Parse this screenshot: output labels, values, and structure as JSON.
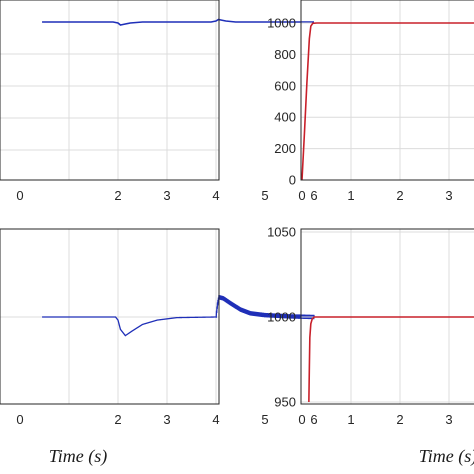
{
  "chart_data": [
    {
      "type": "line",
      "xlim": [
        0,
        6
      ],
      "x_ticks": [
        "2",
        "3",
        "4",
        "5",
        "6"
      ],
      "x_ticks_partial": [
        "0"
      ],
      "y_ticks": [],
      "grid": true,
      "color": "#1f2fb8",
      "series": [
        {
          "x": [
            0.45,
            1.9,
            2.0,
            2.05,
            2.1,
            2.25,
            2.5,
            3.9,
            4.0,
            4.05,
            4.1,
            4.2,
            4.4,
            6.0
          ],
          "y": [
            0.0,
            0.0,
            -0.02,
            -0.06,
            -0.05,
            -0.02,
            0.0,
            0.0,
            0.02,
            0.05,
            0.04,
            0.02,
            0.0,
            0.0
          ]
        }
      ]
    },
    {
      "type": "line",
      "xlim": [
        0,
        4
      ],
      "ylim": [
        0,
        1000
      ],
      "x_ticks": [
        "0",
        "1",
        "2",
        "3"
      ],
      "y_ticks": [
        "0",
        "200",
        "400",
        "600",
        "800",
        "1000"
      ],
      "grid": true,
      "color": "#c8202a",
      "series": [
        {
          "x": [
            0,
            0.05,
            0.1,
            0.15,
            0.18,
            0.22,
            0.3,
            4.0
          ],
          "y": [
            0,
            300,
            620,
            900,
            980,
            998,
            1000,
            1000
          ]
        }
      ]
    },
    {
      "type": "line",
      "xlim": [
        0,
        6
      ],
      "x_ticks": [
        "2",
        "3",
        "4",
        "5",
        "6"
      ],
      "x_ticks_partial": [
        "0"
      ],
      "y_ticks": [],
      "grid": true,
      "color": "#1f2fb8",
      "series": [
        {
          "x": [
            0.45,
            1.95,
            2.0,
            2.05,
            2.15,
            2.3,
            2.5,
            2.8,
            3.2,
            4.0,
            4.03,
            4.06,
            4.15,
            4.3,
            4.5,
            4.7,
            5.0,
            5.5,
            6.0
          ],
          "y": [
            0.0,
            0.0,
            -0.05,
            -0.2,
            -0.3,
            -0.22,
            -0.12,
            -0.05,
            -0.01,
            0.0,
            0.2,
            0.32,
            0.3,
            0.22,
            0.12,
            0.06,
            0.03,
            0.01,
            0.0
          ]
        }
      ],
      "oscillation": {
        "from": 4.0,
        "to": 6.0,
        "amplitude": 0.035
      }
    },
    {
      "type": "line",
      "xlim": [
        0,
        4
      ],
      "ylim": [
        950,
        1050
      ],
      "x_ticks": [
        "0",
        "1",
        "2",
        "3"
      ],
      "y_ticks": [
        "950",
        "1000",
        "1050"
      ],
      "grid": true,
      "color": "#c8202a",
      "series": [
        {
          "x": [
            0.14,
            0.15,
            0.16,
            0.18,
            0.21,
            0.25,
            0.3,
            0.4,
            4.0
          ],
          "y": [
            950,
            970,
            988,
            996,
            999,
            1000,
            1000,
            1000,
            1000
          ]
        }
      ]
    }
  ],
  "xlabels": [
    "Time (s)",
    "Time (s)"
  ]
}
